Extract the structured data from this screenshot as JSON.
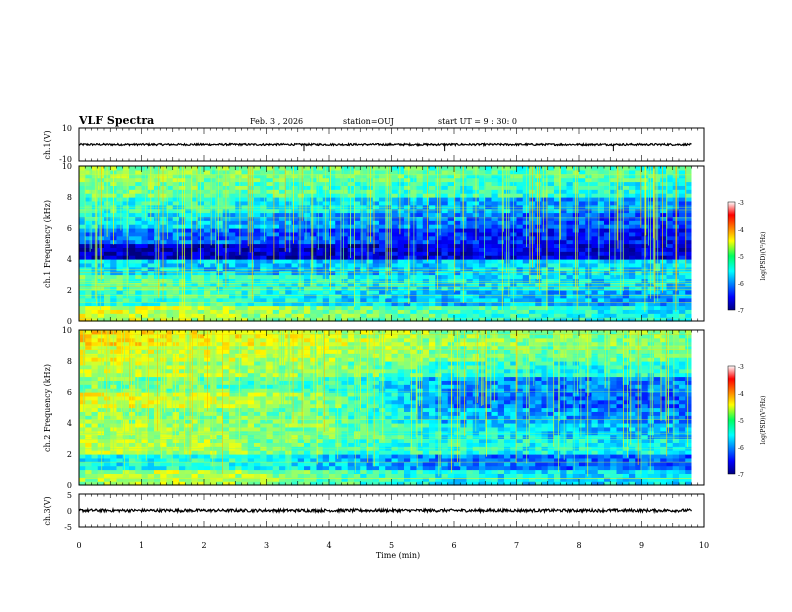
{
  "header": {
    "title": "VLF Spectra",
    "date": "Feb. 3 , 2026",
    "station": "station=OUJ",
    "start_ut": "start UT =  9 : 30: 0"
  },
  "chart_data": {
    "type": "heatmap",
    "xlabel": "Time (min)",
    "xlim": [
      0,
      10
    ],
    "x_ticks": [
      "0",
      "1",
      "2",
      "3",
      "4",
      "5",
      "6",
      "7",
      "8",
      "9",
      "10"
    ],
    "data_end_min": 9.8,
    "panels": [
      {
        "name": "ch1-waveform",
        "kind": "waveform",
        "ylabel": "ch.1(V)",
        "ylim": [
          -10,
          10
        ],
        "y_ticks": [
          "10",
          "-10"
        ],
        "baseline": 0,
        "spike_times_min": [
          3.6,
          5.85,
          8.55
        ]
      },
      {
        "name": "ch1-spectrogram",
        "kind": "spectrogram",
        "ylabel": "ch.1 Frequency (kHz)",
        "ylim": [
          0,
          10
        ],
        "y_ticks": [
          "0",
          "2",
          "4",
          "6",
          "8",
          "10"
        ],
        "colorbar_label": "log(PSD)(V²/Hz)",
        "colorbar_ticks": [
          "-3",
          "-4",
          "-5",
          "-6",
          "-7"
        ],
        "clim": [
          -7,
          -3
        ],
        "time_bins_min": [
          0,
          2,
          4,
          6,
          8,
          9.8
        ],
        "freq_bands_khz": [
          0,
          1,
          2,
          3,
          4,
          5,
          6,
          7,
          8,
          9,
          10
        ],
        "log_psd": [
          [
            -4.6,
            -4.8,
            -5.0,
            -5.2,
            -5.4,
            -5.5
          ],
          [
            -5.4,
            -5.2,
            -5.6,
            -5.8,
            -5.8,
            -5.9
          ],
          [
            -5.1,
            -5.3,
            -5.5,
            -5.6,
            -5.6,
            -5.7
          ],
          [
            -5.6,
            -5.7,
            -5.8,
            -5.7,
            -5.6,
            -5.6
          ],
          [
            -6.8,
            -6.8,
            -6.7,
            -6.6,
            -6.6,
            -6.6
          ],
          [
            -6.0,
            -6.1,
            -6.2,
            -6.3,
            -6.4,
            -6.5
          ],
          [
            -5.5,
            -5.7,
            -5.9,
            -6.0,
            -6.2,
            -6.3
          ],
          [
            -5.3,
            -5.4,
            -5.6,
            -5.8,
            -5.9,
            -6.0
          ],
          [
            -5.0,
            -5.1,
            -5.2,
            -5.3,
            -5.4,
            -5.4
          ],
          [
            -4.9,
            -5.0,
            -5.1,
            -5.2,
            -5.2,
            -5.3
          ]
        ]
      },
      {
        "name": "ch2-spectrogram",
        "kind": "spectrogram",
        "ylabel": "ch.2 Frequency (kHz)",
        "ylim": [
          0,
          10
        ],
        "y_ticks": [
          "0",
          "2",
          "4",
          "6",
          "8",
          "10"
        ],
        "colorbar_label": "log(PSD)(V²/Hz)",
        "colorbar_ticks": [
          "-3",
          "-4",
          "-5",
          "-6",
          "-7"
        ],
        "clim": [
          -7,
          -3
        ],
        "time_bins_min": [
          0,
          2,
          4,
          6,
          8,
          9.8
        ],
        "freq_bands_khz": [
          0,
          1,
          2,
          3,
          4,
          5,
          6,
          7,
          8,
          9,
          10
        ],
        "log_psd": [
          [
            -4.9,
            -4.7,
            -5.2,
            -5.5,
            -5.6,
            -5.6
          ],
          [
            -5.6,
            -5.3,
            -5.7,
            -6.0,
            -6.1,
            -6.1
          ],
          [
            -4.7,
            -4.8,
            -5.2,
            -5.4,
            -5.5,
            -5.5
          ],
          [
            -4.8,
            -4.9,
            -5.0,
            -5.5,
            -5.7,
            -5.8
          ],
          [
            -4.9,
            -5.0,
            -5.1,
            -5.8,
            -5.9,
            -6.0
          ],
          [
            -4.6,
            -4.7,
            -5.0,
            -6.0,
            -6.1,
            -6.2
          ],
          [
            -5.0,
            -5.1,
            -5.3,
            -5.9,
            -6.0,
            -6.0
          ],
          [
            -4.7,
            -4.8,
            -5.0,
            -5.3,
            -5.4,
            -5.4
          ],
          [
            -4.6,
            -4.7,
            -4.8,
            -5.0,
            -5.1,
            -5.1
          ],
          [
            -4.4,
            -4.5,
            -4.7,
            -4.9,
            -5.0,
            -5.0
          ]
        ]
      },
      {
        "name": "ch3-waveform",
        "kind": "waveform",
        "ylabel": "ch.3(V)",
        "ylim": [
          -5,
          5
        ],
        "y_ticks": [
          "5",
          "0",
          "-5"
        ],
        "baseline": 0,
        "spike_times_min": []
      }
    ]
  }
}
